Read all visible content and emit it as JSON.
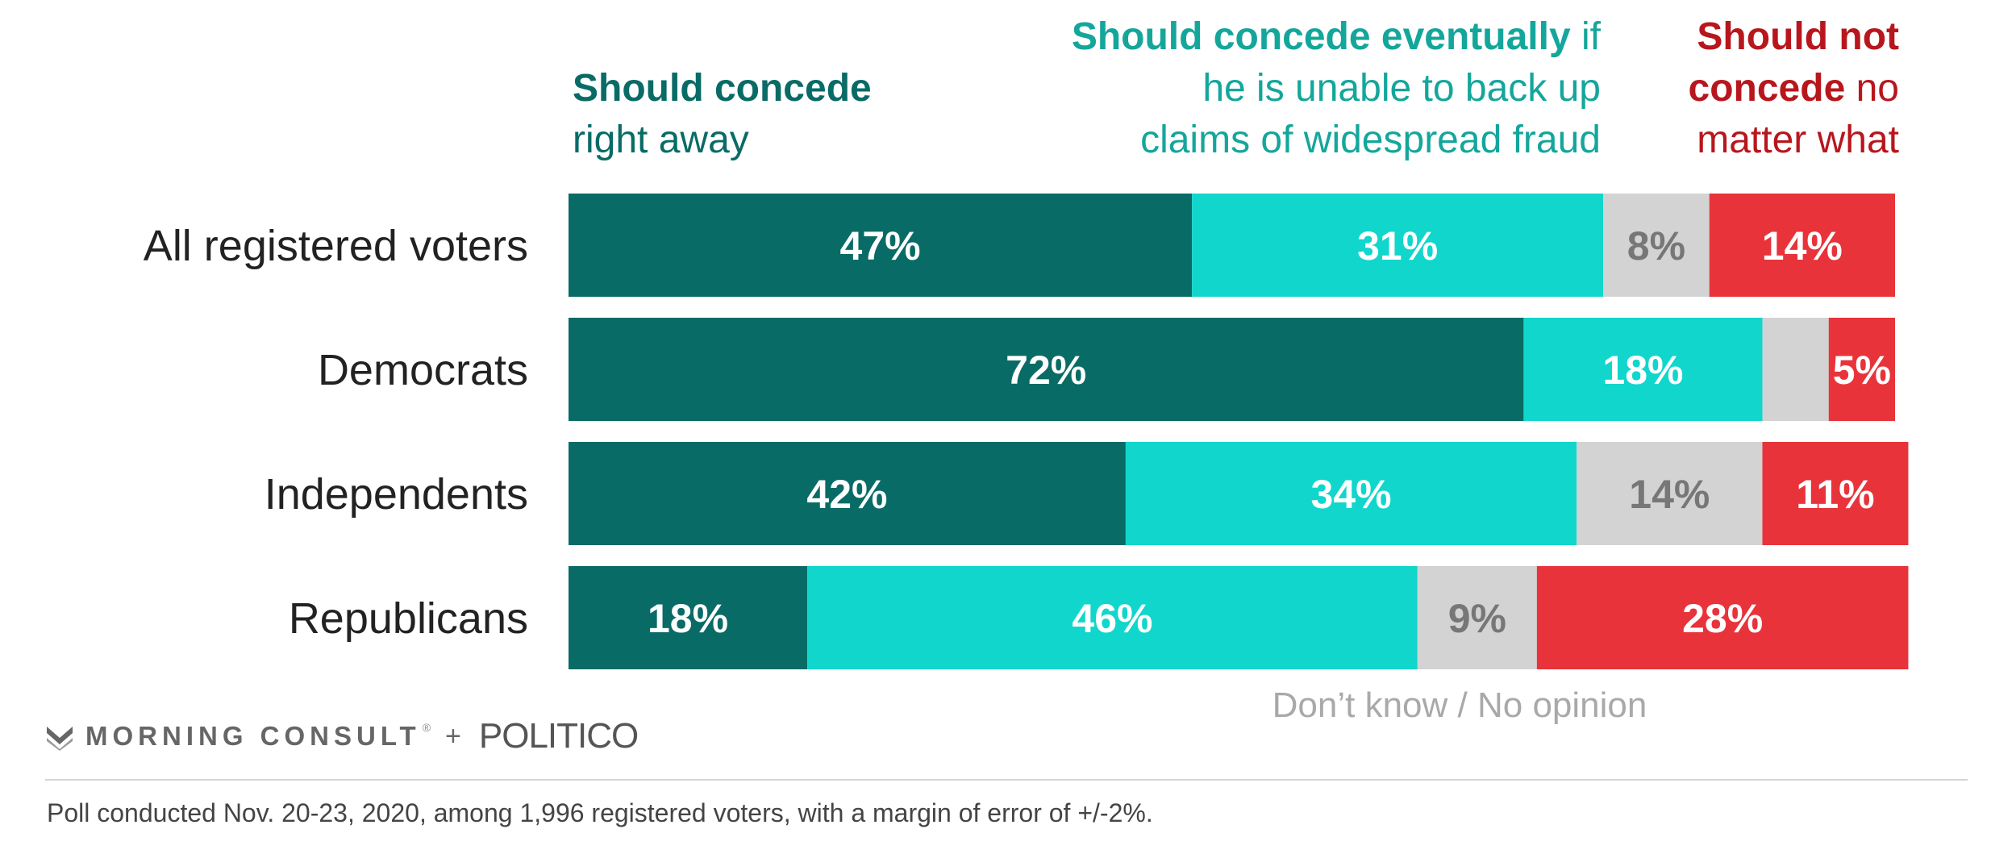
{
  "legend_heads": [
    {
      "bold": "Should concede",
      "rest": "right away",
      "color": "#096b66"
    },
    {
      "bold": "Should concede eventually",
      "rest_line1": " if",
      "rest_line2": "he is unable to back up",
      "rest_line3": "claims of widespread fraud",
      "color": "#14a69b"
    },
    {
      "bold_line1": "Should not",
      "bold_line2": "concede",
      "rest_line2": " no",
      "rest_line3": "matter what",
      "color": "#b8161d"
    }
  ],
  "dont_know_label": "Don’t know / No opinion",
  "brand": {
    "mc": "MORNING CONSULT",
    "reg": "®",
    "plus": "+",
    "politico": "POLITICO"
  },
  "note": "Poll conducted Nov. 20-23, 2020, among 1,996 registered voters, with a margin of error of +/-2%.",
  "chart_data": {
    "type": "bar",
    "orientation": "horizontal",
    "stacked": true,
    "categories": [
      "All registered voters",
      "Democrats",
      "Independents",
      "Republicans"
    ],
    "series": [
      {
        "name": "Should concede right away",
        "color": "#096b66",
        "label_color": "#ffffff",
        "values": [
          47,
          72,
          42,
          18
        ],
        "labels": [
          "47%",
          "72%",
          "42%",
          "18%"
        ]
      },
      {
        "name": "Should concede eventually if he is unable to back up claims of widespread fraud",
        "color": "#11d6cc",
        "label_color": "#ffffff",
        "values": [
          31,
          18,
          34,
          46
        ],
        "labels": [
          "31%",
          "18%",
          "34%",
          "46%"
        ]
      },
      {
        "name": "Don’t know / No opinion",
        "color": "#d3d3d3",
        "label_color": "#777777",
        "values": [
          8,
          5,
          14,
          9
        ],
        "labels": [
          "8%",
          "",
          "14%",
          "9%"
        ]
      },
      {
        "name": "Should not concede no matter what",
        "color": "#e8333a",
        "label_color": "#ffffff",
        "values": [
          14,
          5,
          11,
          28
        ],
        "labels": [
          "14%",
          "5%",
          "11%",
          "28%"
        ]
      }
    ],
    "xlim": [
      0,
      100
    ],
    "grid": false
  }
}
